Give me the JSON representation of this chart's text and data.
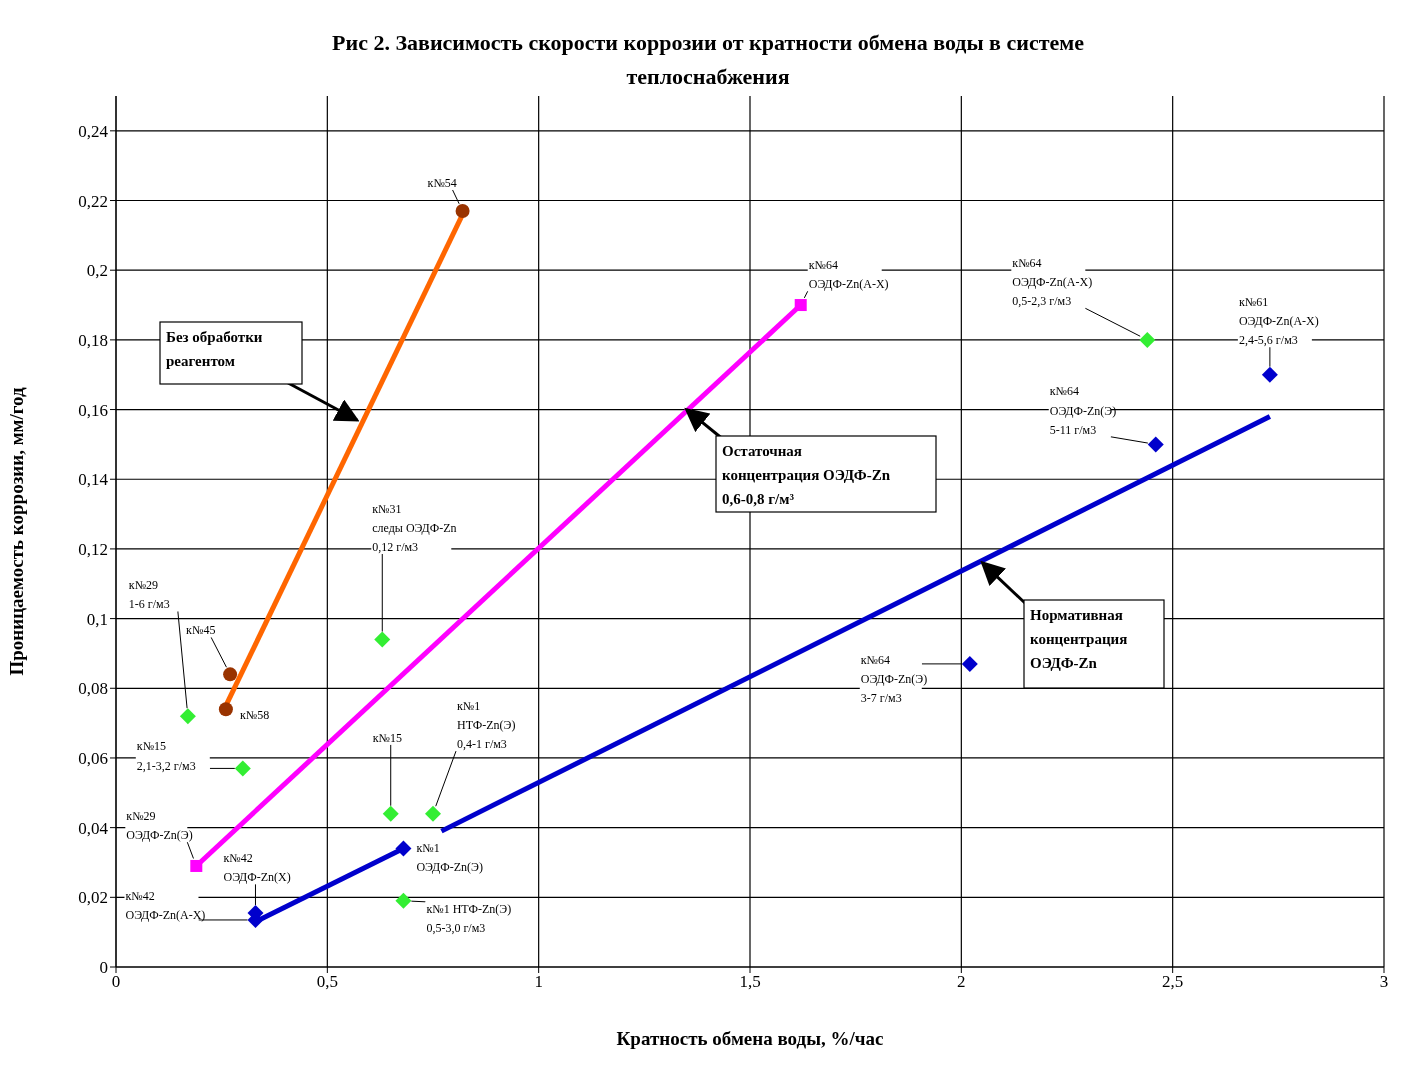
{
  "chart_data": {
    "type": "scatter",
    "title": "Рис 2. Зависимость скорости коррозии от кратности обмена воды в системе теплоснабжения",
    "xlabel": "Кратность  обмена воды, %/час",
    "ylabel": "Проницаемость коррозии, мм/год",
    "xlim": [
      0,
      3
    ],
    "xticks": [
      0,
      {
        "value": 0.5,
        "label": "0,5"
      },
      1,
      {
        "value": 1.5,
        "label": "1,5"
      },
      2,
      {
        "value": 2.5,
        "label": "2,5"
      },
      3
    ],
    "ylim": [
      0,
      0.25
    ],
    "yticks": [
      0,
      {
        "value": 0.02,
        "label": "0,02"
      },
      {
        "value": 0.04,
        "label": "0,04"
      },
      {
        "value": 0.06,
        "label": "0,06"
      },
      {
        "value": 0.08,
        "label": "0,08"
      },
      {
        "value": 0.1,
        "label": "0,1"
      },
      {
        "value": 0.12,
        "label": "0,12"
      },
      {
        "value": 0.14,
        "label": "0,14"
      },
      {
        "value": 0.16,
        "label": "0,16"
      },
      {
        "value": 0.18,
        "label": "0,18"
      },
      {
        "value": 0.2,
        "label": "0,2"
      },
      {
        "value": 0.22,
        "label": "0,22"
      },
      {
        "value": 0.24,
        "label": "0,24"
      }
    ],
    "grid": true,
    "legend": false,
    "series": [
      {
        "type": "line",
        "color": "#ff6600",
        "marker": "none",
        "x": [
          0.26,
          0.82
        ],
        "values": [
          0.075,
          0.216
        ]
      },
      {
        "type": "line",
        "color": "#0000cc",
        "marker": "none",
        "x": [
          0.33,
          0.68
        ],
        "values": [
          0.013,
          0.034
        ]
      },
      {
        "type": "line",
        "color": "#0000cc",
        "marker": "none",
        "x": [
          0.77,
          2.73
        ],
        "values": [
          0.039,
          0.158
        ]
      },
      {
        "type": "line",
        "color": "#ff00ff",
        "marker": "square",
        "x": [
          0.19,
          1.62
        ],
        "values": [
          0.029,
          0.19
        ]
      },
      {
        "type": "scatter",
        "color": "#993300",
        "marker": "circle",
        "x": [
          0.26,
          0.27,
          0.82
        ],
        "values": [
          0.074,
          0.084,
          0.217
        ]
      },
      {
        "type": "scatter",
        "color": "#0000cc",
        "marker": "diamond",
        "x": [
          0.33,
          0.33,
          0.68,
          2.02,
          2.46,
          2.73
        ],
        "values": [
          0.0155,
          0.0135,
          0.034,
          0.087,
          0.15,
          0.17
        ]
      },
      {
        "type": "scatter",
        "color": "#33ee33",
        "marker": "diamond",
        "x": [
          0.17,
          0.3,
          0.63,
          0.65,
          0.75,
          0.68,
          2.44
        ],
        "values": [
          0.072,
          0.057,
          0.094,
          0.044,
          0.044,
          0.019,
          0.18
        ]
      }
    ],
    "annotations": [
      {
        "text": "к№54",
        "x": 0.82,
        "y": 0.217
      },
      {
        "text": "к№64\nОЭДФ-Zn(А-Х)",
        "x": 1.62,
        "y": 0.19
      },
      {
        "text": "к№64\nОЭДФ-Zn(А-Х)\n0,5-2,3 г/м3",
        "x": 2.44,
        "y": 0.18
      },
      {
        "text": "к№61\nОЭДФ-Zn(А-Х)\n2,4-5,6 г/м3",
        "x": 2.73,
        "y": 0.17
      },
      {
        "text": "к№64\nОЭДФ-Zn(Э)\n5-11 г/м3",
        "x": 2.46,
        "y": 0.15
      },
      {
        "text": "к№64\nОЭДФ-Zn(Э)\n3-7 г/м3",
        "x": 2.02,
        "y": 0.087
      },
      {
        "text": "к№31\nследы ОЭДФ-Zn\n0,12 г/м3",
        "x": 0.63,
        "y": 0.094
      },
      {
        "text": "к№29\n1-6 г/м3",
        "x": 0.17,
        "y": 0.072
      },
      {
        "text": "к№45",
        "x": 0.27,
        "y": 0.084
      },
      {
        "text": "к№58",
        "x": 0.26,
        "y": 0.074
      },
      {
        "text": "к№15\n2,1-3,2 г/м3",
        "x": 0.3,
        "y": 0.057
      },
      {
        "text": "к№15",
        "x": 0.65,
        "y": 0.044
      },
      {
        "text": "к№1\nНТФ-Zn(Э)\n0,4-1 г/м3",
        "x": 0.75,
        "y": 0.044
      },
      {
        "text": "к№1\nОЭДФ-Zn(Э)",
        "x": 0.68,
        "y": 0.034
      },
      {
        "text": "к№1 НТФ-Zn(Э)\n0,5-3,0 г/м3",
        "x": 0.68,
        "y": 0.019
      },
      {
        "text": "к№29\nОЭДФ-Zn(Э)",
        "x": 0.19,
        "y": 0.029
      },
      {
        "text": "к№42\nОЭДФ-Zn(Х)",
        "x": 0.33,
        "y": 0.0155
      },
      {
        "text": "к№42\nОЭДФ-Zn(А-Х)",
        "x": 0.33,
        "y": 0.0135
      },
      {
        "text": "Без обработки\nреагентом",
        "x": 0.57,
        "y": 0.157
      },
      {
        "text": "Остаточная\nконцентрация ОЭДФ-Zn\n0,6-0,8 г/м³",
        "x": 1.35,
        "y": 0.16
      },
      {
        "text": "Нормативная\nконцентрация\nОЭДФ-Zn",
        "x": 2.05,
        "y": 0.116
      }
    ]
  }
}
